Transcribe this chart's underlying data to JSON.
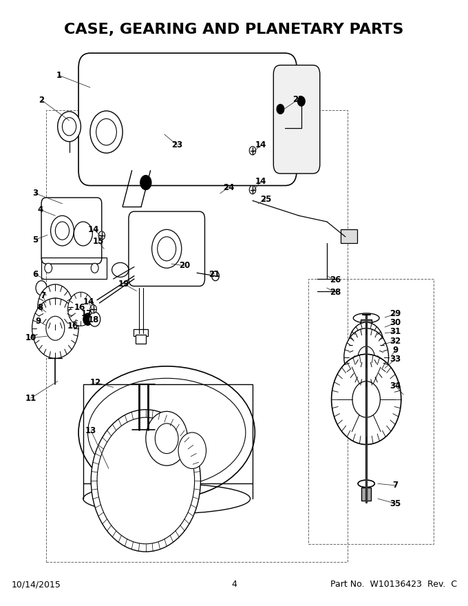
{
  "title": "CASE, GEARING AND PLANETARY PARTS",
  "title_fontsize": 16,
  "title_fontweight": "bold",
  "footer_left": "10/14/2015",
  "footer_center": "4",
  "footer_right": "Part No.  W10136423  Rev.  C",
  "footer_fontsize": 9,
  "bg_color": "#ffffff",
  "line_color": "#000000"
}
